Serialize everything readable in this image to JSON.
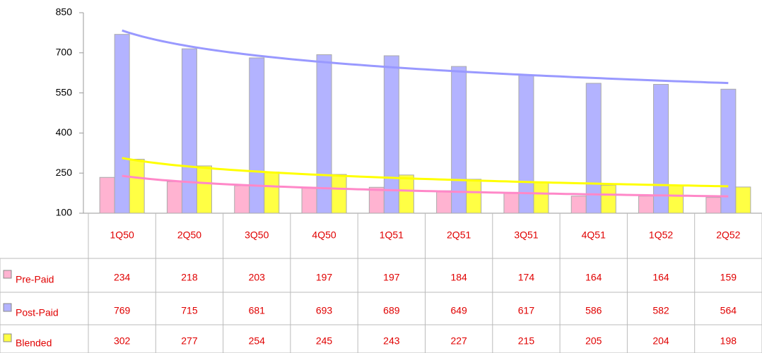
{
  "chart_data": {
    "type": "bar",
    "categories": [
      "1Q50",
      "2Q50",
      "3Q50",
      "4Q50",
      "1Q51",
      "2Q51",
      "3Q51",
      "4Q51",
      "1Q52",
      "2Q52"
    ],
    "series": [
      {
        "name": "Pre-Paid",
        "color": "#ffb3d1",
        "trend_color": "#ff88c8",
        "values": [
          234,
          218,
          203,
          197,
          197,
          184,
          174,
          164,
          164,
          159
        ]
      },
      {
        "name": "Post-Paid",
        "color": "#b3b3ff",
        "trend_color": "#9999ff",
        "values": [
          769,
          715,
          681,
          693,
          689,
          649,
          617,
          586,
          582,
          564
        ]
      },
      {
        "name": "Blended",
        "color": "#ffff44",
        "trend_color": "#ffff00",
        "values": [
          302,
          277,
          254,
          245,
          243,
          227,
          215,
          205,
          204,
          198
        ]
      }
    ],
    "ylim": [
      100,
      850
    ],
    "yticks": [
      100,
      250,
      400,
      550,
      700,
      850
    ],
    "trendline": "logarithmic",
    "data_table": true
  }
}
